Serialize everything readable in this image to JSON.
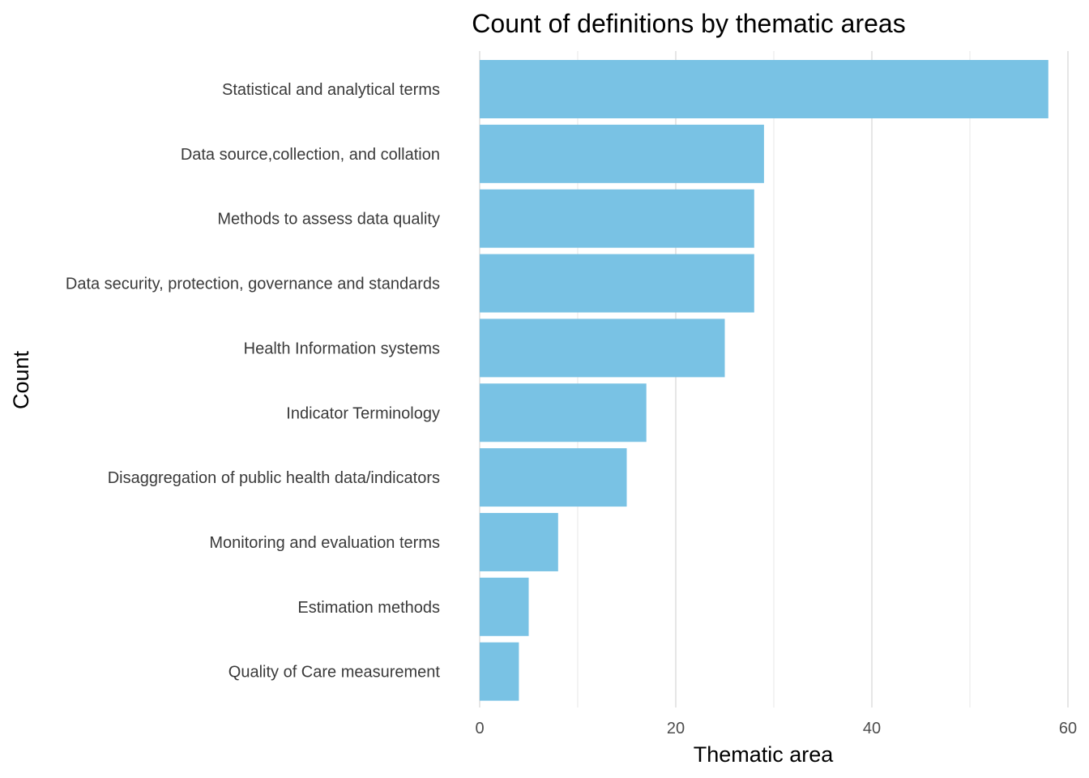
{
  "chart_data": {
    "type": "bar",
    "orientation": "horizontal",
    "title": "Count of definitions by thematic areas",
    "xlabel": "Thematic area",
    "ylabel": "Count",
    "categories": [
      "Statistical and analytical terms",
      "Data source,collection, and collation",
      "Methods to assess data quality",
      "Data security, protection, governance and standards",
      "Health Information systems",
      "Indicator Terminology",
      "Disaggregation of public health data/indicators",
      "Monitoring and evaluation terms",
      "Estimation methods",
      "Quality of Care measurement"
    ],
    "values": [
      58,
      29,
      28,
      28,
      25,
      17,
      15,
      8,
      5,
      4
    ],
    "xlim": [
      0,
      60
    ],
    "xticks": [
      0,
      20,
      40,
      60
    ],
    "grid": true,
    "legend": "none",
    "bar_color": "#79c2e4"
  }
}
